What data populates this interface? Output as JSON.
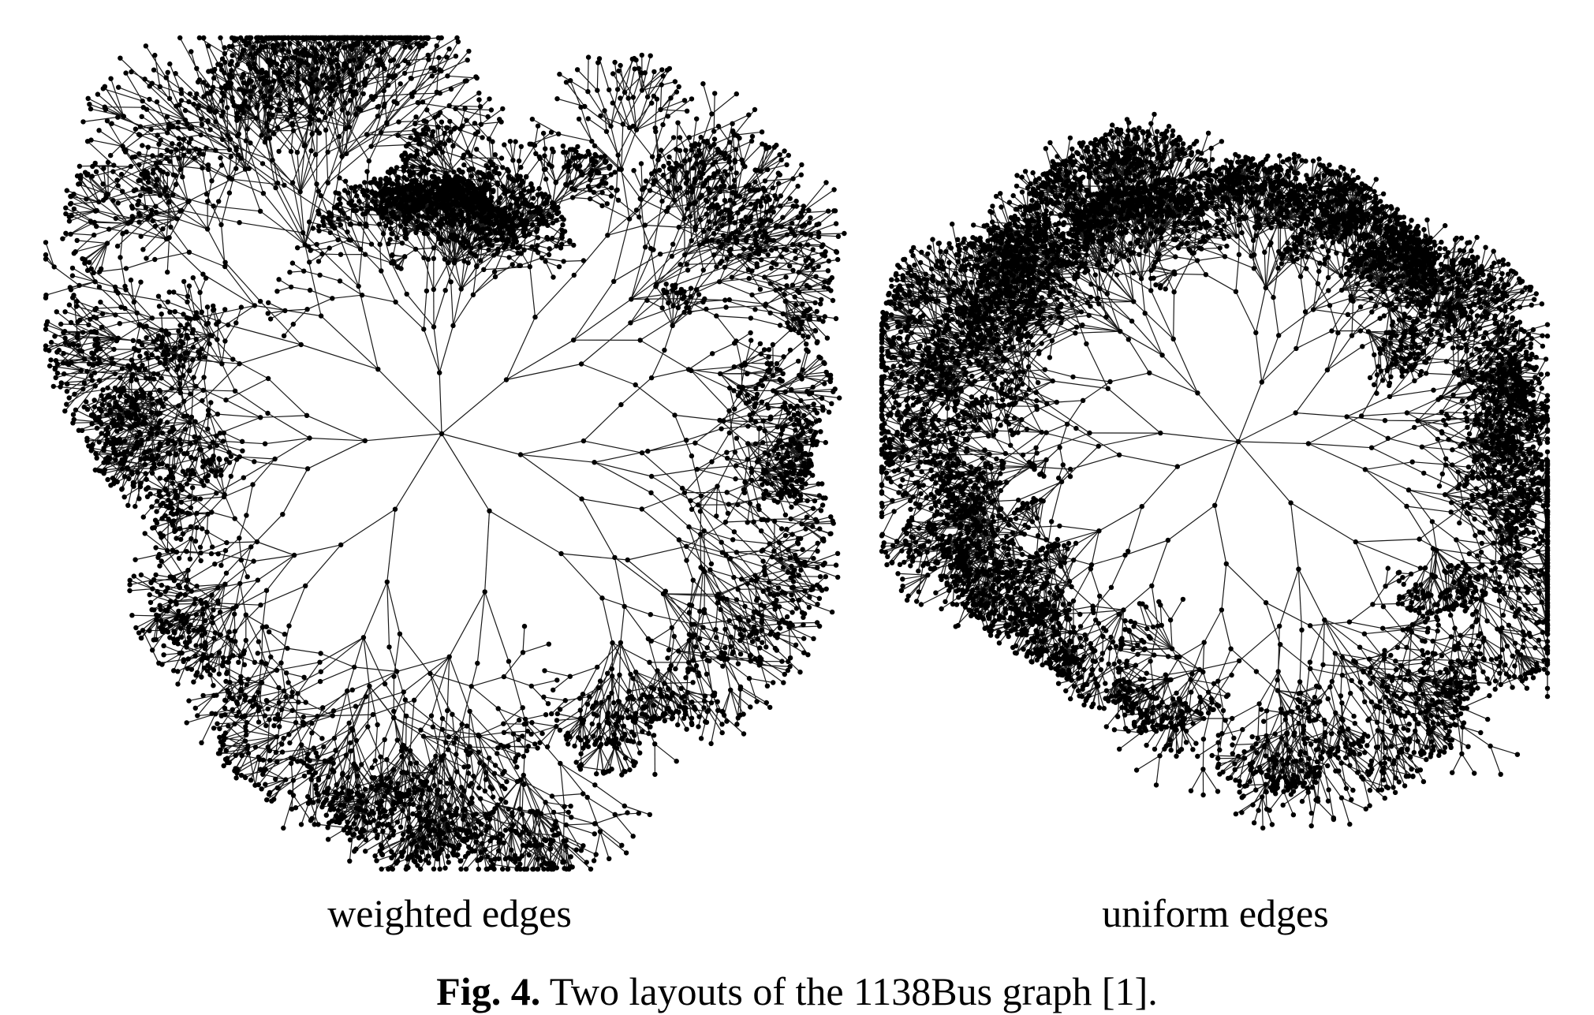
{
  "figure": {
    "panels": [
      {
        "id": "weighted",
        "label": "weighted edges"
      },
      {
        "id": "uniform",
        "label": "uniform edges"
      }
    ],
    "caption": {
      "number": "Fig. 4.",
      "text": " Two layouts of the 1138Bus graph [1]."
    },
    "colors": {
      "edge": "#1a1a1a",
      "node": "#000000"
    }
  }
}
